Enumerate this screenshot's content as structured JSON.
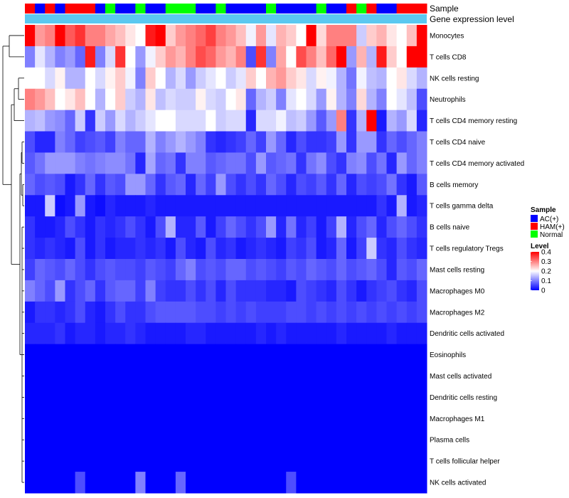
{
  "chart_data": {
    "type": "heatmap",
    "title": "",
    "annotations": {
      "sample_label": "Sample",
      "expression_label": "Gene expression level",
      "samples": [
        "HAM(+)",
        "AC(+)",
        "HAM(+)",
        "AC(+)",
        "HAM(+)",
        "HAM(+)",
        "HAM(+)",
        "AC(+)",
        "Normal",
        "AC(+)",
        "AC(+)",
        "Normal",
        "AC(+)",
        "AC(+)",
        "Normal",
        "Normal",
        "Normal",
        "AC(+)",
        "AC(+)",
        "Normal",
        "AC(+)",
        "AC(+)",
        "AC(+)",
        "AC(+)",
        "Normal",
        "AC(+)",
        "AC(+)",
        "AC(+)",
        "AC(+)",
        "Normal",
        "AC(+)",
        "AC(+)",
        "HAM(+)",
        "Normal",
        "HAM(+)",
        "AC(+)",
        "AC(+)",
        "HAM(+)",
        "HAM(+)",
        "HAM(+)"
      ]
    },
    "rows": [
      "Monocytes",
      "T cells CD8",
      "NK cells resting",
      "Neutrophils",
      "T cells CD4 memory resting",
      "T cells CD4 naive",
      "T cells CD4 memory activated",
      "B cells memory",
      "T cells gamma delta",
      "B cells naive",
      "T cells regulatory  Tregs",
      "Mast cells resting",
      "Macrophages M0",
      "Macrophages M2",
      "Dendritic cells activated",
      "Eosinophils",
      "Mast cells activated",
      "Dendritic cells resting",
      "Macrophages M1",
      "Plasma cells",
      "T cells follicular helper",
      "NK cells activated"
    ],
    "values": [
      [
        0.4,
        0.28,
        0.3,
        0.4,
        0.33,
        0.36,
        0.3,
        0.3,
        0.27,
        0.25,
        0.22,
        0.2,
        0.38,
        0.4,
        0.24,
        0.28,
        0.3,
        0.32,
        0.35,
        0.3,
        0.28,
        0.25,
        0.19,
        0.28,
        0.18,
        0.26,
        0.24,
        0.2,
        0.4,
        0.23,
        0.3,
        0.3,
        0.3,
        0.16,
        0.24,
        0.26,
        0.22,
        0.2,
        0.25,
        0.4
      ],
      [
        0.1,
        0.18,
        0.14,
        0.1,
        0.12,
        0.08,
        0.38,
        0.1,
        0.17,
        0.36,
        0.2,
        0.12,
        0.19,
        0.24,
        0.28,
        0.26,
        0.3,
        0.34,
        0.32,
        0.28,
        0.26,
        0.3,
        0.06,
        0.36,
        0.1,
        0.27,
        0.2,
        0.34,
        0.3,
        0.25,
        0.32,
        0.4,
        0.12,
        0.26,
        0.14,
        0.38,
        0.24,
        0.2,
        0.4,
        0.4
      ],
      [
        0.2,
        0.2,
        0.17,
        0.21,
        0.14,
        0.14,
        0.2,
        0.17,
        0.21,
        0.24,
        0.19,
        0.1,
        0.24,
        0.2,
        0.14,
        0.17,
        0.12,
        0.16,
        0.18,
        0.2,
        0.16,
        0.18,
        0.24,
        0.2,
        0.26,
        0.28,
        0.24,
        0.22,
        0.17,
        0.21,
        0.19,
        0.14,
        0.09,
        0.19,
        0.15,
        0.14,
        0.2,
        0.22,
        0.17,
        0.14
      ],
      [
        0.3,
        0.28,
        0.25,
        0.2,
        0.22,
        0.25,
        0.2,
        0.14,
        0.2,
        0.24,
        0.16,
        0.14,
        0.22,
        0.15,
        0.17,
        0.16,
        0.16,
        0.21,
        0.17,
        0.16,
        0.2,
        0.22,
        0.08,
        0.14,
        0.16,
        0.1,
        0.18,
        0.2,
        0.17,
        0.12,
        0.21,
        0.14,
        0.1,
        0.23,
        0.14,
        0.1,
        0.2,
        0.18,
        0.15,
        0.06
      ],
      [
        0.14,
        0.15,
        0.12,
        0.11,
        0.08,
        0.16,
        0.04,
        0.16,
        0.12,
        0.17,
        0.14,
        0.16,
        0.18,
        0.2,
        0.2,
        0.17,
        0.17,
        0.17,
        0.2,
        0.16,
        0.17,
        0.17,
        0.03,
        0.17,
        0.17,
        0.19,
        0.15,
        0.16,
        0.12,
        0.07,
        0.12,
        0.3,
        0.04,
        0.14,
        0.4,
        0.02,
        0.14,
        0.12,
        0.17,
        0.03
      ],
      [
        0.06,
        0.03,
        0.03,
        0.1,
        0.08,
        0.05,
        0.06,
        0.07,
        0.05,
        0.1,
        0.08,
        0.08,
        0.14,
        0.1,
        0.12,
        0.14,
        0.12,
        0.1,
        0.04,
        0.03,
        0.04,
        0.05,
        0.08,
        0.05,
        0.12,
        0.08,
        0.03,
        0.06,
        0.04,
        0.04,
        0.05,
        0.12,
        0.04,
        0.12,
        0.12,
        0.04,
        0.08,
        0.06,
        0.08,
        0.1
      ],
      [
        0.07,
        0.09,
        0.12,
        0.12,
        0.12,
        0.1,
        0.09,
        0.1,
        0.11,
        0.11,
        0.09,
        0.03,
        0.13,
        0.08,
        0.09,
        0.04,
        0.1,
        0.1,
        0.07,
        0.08,
        0.09,
        0.09,
        0.06,
        0.12,
        0.07,
        0.08,
        0.09,
        0.04,
        0.09,
        0.11,
        0.06,
        0.04,
        0.1,
        0.11,
        0.06,
        0.09,
        0.03,
        0.12,
        0.08,
        0.1
      ],
      [
        0.08,
        0.06,
        0.07,
        0.06,
        0.02,
        0.04,
        0.08,
        0.04,
        0.07,
        0.06,
        0.12,
        0.12,
        0.08,
        0.04,
        0.07,
        0.08,
        0.03,
        0.08,
        0.05,
        0.12,
        0.06,
        0.04,
        0.06,
        0.04,
        0.08,
        0.06,
        0.03,
        0.06,
        0.05,
        0.07,
        0.04,
        0.08,
        0.03,
        0.06,
        0.05,
        0.06,
        0.09,
        0.04,
        0.02,
        0.07
      ],
      [
        0.02,
        0.02,
        0.16,
        0.01,
        0.02,
        0.12,
        0.02,
        0.01,
        0.03,
        0.02,
        0.02,
        0.02,
        0.03,
        0.02,
        0.02,
        0.02,
        0.02,
        0.02,
        0.02,
        0.02,
        0.02,
        0.02,
        0.02,
        0.02,
        0.02,
        0.02,
        0.02,
        0.02,
        0.02,
        0.02,
        0.02,
        0.02,
        0.02,
        0.02,
        0.02,
        0.04,
        0.02,
        0.14,
        0.02,
        0.03
      ],
      [
        0.04,
        0.02,
        0.02,
        0.03,
        0.06,
        0.04,
        0.02,
        0.04,
        0.03,
        0.04,
        0.06,
        0.04,
        0.02,
        0.06,
        0.14,
        0.03,
        0.03,
        0.07,
        0.02,
        0.05,
        0.08,
        0.06,
        0.04,
        0.06,
        0.12,
        0.03,
        0.09,
        0.03,
        0.05,
        0.02,
        0.05,
        0.14,
        0.03,
        0.06,
        0.08,
        0.03,
        0.06,
        0.08,
        0.06,
        0.04
      ],
      [
        0.04,
        0.03,
        0.04,
        0.03,
        0.02,
        0.06,
        0.02,
        0.04,
        0.02,
        0.03,
        0.03,
        0.04,
        0.03,
        0.04,
        0.02,
        0.06,
        0.03,
        0.02,
        0.06,
        0.03,
        0.04,
        0.02,
        0.03,
        0.04,
        0.03,
        0.02,
        0.05,
        0.04,
        0.06,
        0.02,
        0.03,
        0.08,
        0.02,
        0.05,
        0.16,
        0.04,
        0.03,
        0.06,
        0.04,
        0.03
      ],
      [
        0.05,
        0.08,
        0.07,
        0.06,
        0.08,
        0.06,
        0.04,
        0.06,
        0.07,
        0.06,
        0.06,
        0.05,
        0.07,
        0.06,
        0.05,
        0.08,
        0.1,
        0.06,
        0.07,
        0.06,
        0.08,
        0.08,
        0.06,
        0.07,
        0.06,
        0.05,
        0.07,
        0.06,
        0.08,
        0.07,
        0.06,
        0.08,
        0.06,
        0.07,
        0.08,
        0.06,
        0.03,
        0.07,
        0.06,
        0.08
      ],
      [
        0.1,
        0.08,
        0.06,
        0.12,
        0.04,
        0.06,
        0.08,
        0.04,
        0.07,
        0.08,
        0.08,
        0.05,
        0.1,
        0.05,
        0.04,
        0.04,
        0.06,
        0.04,
        0.06,
        0.03,
        0.06,
        0.04,
        0.04,
        0.04,
        0.03,
        0.03,
        0.02,
        0.06,
        0.05,
        0.04,
        0.03,
        0.06,
        0.04,
        0.02,
        0.04,
        0.05,
        0.06,
        0.04,
        0.03,
        0.06
      ],
      [
        0.02,
        0.04,
        0.04,
        0.03,
        0.04,
        0.06,
        0.03,
        0.02,
        0.04,
        0.06,
        0.04,
        0.04,
        0.06,
        0.07,
        0.07,
        0.07,
        0.07,
        0.06,
        0.06,
        0.05,
        0.06,
        0.05,
        0.06,
        0.05,
        0.05,
        0.05,
        0.06,
        0.06,
        0.05,
        0.06,
        0.05,
        0.06,
        0.05,
        0.06,
        0.05,
        0.06,
        0.05,
        0.06,
        0.05,
        0.06
      ],
      [
        0.03,
        0.03,
        0.03,
        0.04,
        0.02,
        0.03,
        0.03,
        0.02,
        0.03,
        0.03,
        0.04,
        0.03,
        0.02,
        0.02,
        0.02,
        0.02,
        0.03,
        0.03,
        0.02,
        0.02,
        0.02,
        0.02,
        0.02,
        0.03,
        0.02,
        0.03,
        0.02,
        0.02,
        0.02,
        0.02,
        0.02,
        0.03,
        0.02,
        0.02,
        0.02,
        0.02,
        0.03,
        0.02,
        0.02,
        0.02
      ],
      [
        0,
        0,
        0,
        0,
        0,
        0,
        0,
        0,
        0,
        0,
        0,
        0,
        0,
        0,
        0,
        0,
        0,
        0,
        0,
        0,
        0,
        0,
        0,
        0,
        0,
        0,
        0,
        0,
        0,
        0,
        0,
        0,
        0,
        0,
        0,
        0,
        0,
        0,
        0,
        0
      ],
      [
        0,
        0,
        0,
        0,
        0,
        0,
        0,
        0,
        0,
        0,
        0,
        0,
        0,
        0,
        0,
        0,
        0,
        0,
        0,
        0,
        0,
        0,
        0,
        0,
        0,
        0,
        0,
        0,
        0,
        0,
        0,
        0,
        0,
        0,
        0,
        0,
        0,
        0,
        0,
        0
      ],
      [
        0,
        0,
        0,
        0,
        0,
        0,
        0,
        0,
        0,
        0,
        0,
        0,
        0,
        0,
        0,
        0,
        0,
        0,
        0,
        0,
        0,
        0,
        0,
        0,
        0,
        0,
        0,
        0,
        0,
        0,
        0,
        0,
        0,
        0,
        0,
        0,
        0,
        0,
        0,
        0
      ],
      [
        0,
        0,
        0,
        0,
        0,
        0,
        0,
        0,
        0,
        0,
        0,
        0,
        0,
        0,
        0,
        0,
        0,
        0,
        0,
        0,
        0,
        0,
        0,
        0,
        0,
        0,
        0,
        0,
        0,
        0,
        0,
        0,
        0,
        0,
        0,
        0,
        0,
        0,
        0,
        0
      ],
      [
        0,
        0,
        0,
        0,
        0,
        0,
        0,
        0,
        0,
        0,
        0,
        0,
        0,
        0,
        0,
        0,
        0,
        0,
        0,
        0,
        0,
        0,
        0,
        0,
        0,
        0,
        0,
        0,
        0,
        0,
        0,
        0,
        0,
        0,
        0,
        0,
        0,
        0,
        0,
        0
      ],
      [
        0,
        0,
        0,
        0,
        0,
        0,
        0,
        0,
        0,
        0,
        0,
        0,
        0,
        0,
        0,
        0,
        0,
        0,
        0,
        0,
        0,
        0,
        0,
        0,
        0,
        0,
        0,
        0,
        0,
        0,
        0,
        0,
        0,
        0,
        0,
        0,
        0,
        0,
        0,
        0
      ],
      [
        0,
        0,
        0,
        0,
        0,
        0.06,
        0,
        0,
        0,
        0,
        0,
        0.1,
        0,
        0,
        0,
        0.08,
        0,
        0,
        0,
        0,
        0,
        0,
        0,
        0,
        0,
        0,
        0.06,
        0,
        0,
        0,
        0,
        0,
        0,
        0,
        0,
        0,
        0,
        0,
        0,
        0
      ]
    ],
    "value_range": [
      0,
      0.4
    ],
    "legend": {
      "sample_title": "Sample",
      "sample_entries": [
        {
          "label": "AC(+)",
          "color": "#0000ff"
        },
        {
          "label": "HAM(+)",
          "color": "#ff0000"
        },
        {
          "label": "Normal",
          "color": "#00ff00"
        }
      ],
      "level_title": "Level",
      "level_ticks": [
        "0.4",
        "0.3",
        "0.2",
        "0.1",
        "0"
      ],
      "placement": "right"
    },
    "colors": {
      "low": "#0000ff",
      "mid": "#ffffff",
      "high": "#ff0000",
      "expression_bar": "#5bc8f0",
      "sample_AC": "#0000ff",
      "sample_HAM": "#ff0000",
      "sample_Normal": "#00ff00"
    }
  }
}
